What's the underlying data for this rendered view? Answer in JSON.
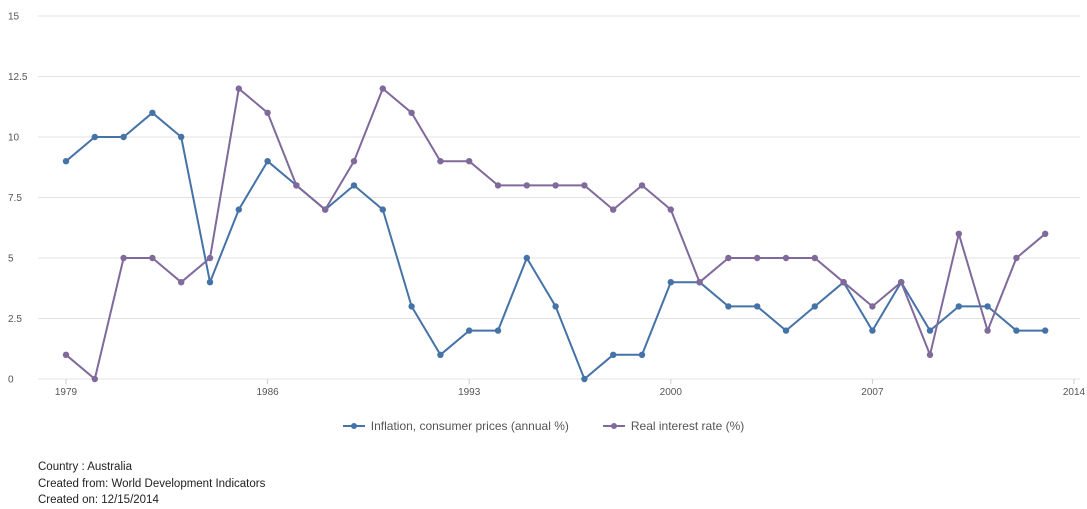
{
  "chart_data": {
    "type": "line",
    "title": "",
    "xlabel": "",
    "ylabel": "",
    "xlim": [
      1979,
      2014
    ],
    "ylim": [
      0,
      15
    ],
    "x_ticks": [
      1979,
      1986,
      1993,
      2000,
      2007,
      2014
    ],
    "y_ticks": [
      0,
      2.5,
      5,
      7.5,
      10,
      12.5,
      15
    ],
    "grid": true,
    "legend_position": "bottom",
    "x": [
      1979,
      1980,
      1981,
      1982,
      1983,
      1984,
      1985,
      1986,
      1987,
      1988,
      1989,
      1990,
      1991,
      1992,
      1993,
      1994,
      1995,
      1996,
      1997,
      1998,
      1999,
      2000,
      2001,
      2002,
      2003,
      2004,
      2005,
      2006,
      2007,
      2008,
      2009,
      2010,
      2011,
      2012,
      2013
    ],
    "series": [
      {
        "name": "Inflation, consumer prices (annual %)",
        "color": "#4572a7",
        "values": [
          9,
          10,
          10,
          11,
          10,
          4,
          7,
          9,
          8,
          7,
          8,
          7,
          3,
          1,
          2,
          2,
          5,
          3,
          0,
          1,
          1,
          4,
          4,
          3,
          3,
          2,
          3,
          4,
          2,
          4,
          2,
          3,
          3,
          2,
          2
        ]
      },
      {
        "name": "Real interest rate (%)",
        "color": "#80699b",
        "values": [
          1,
          0,
          5,
          5,
          4,
          5,
          12,
          11,
          8,
          7,
          9,
          12,
          11,
          9,
          9,
          8,
          8,
          8,
          8,
          7,
          8,
          7,
          4,
          5,
          5,
          5,
          5,
          4,
          3,
          4,
          1,
          6,
          2,
          5,
          6
        ]
      }
    ]
  },
  "footer": {
    "country": "Country : Australia",
    "source": "Created from: World Development Indicators",
    "created": "Created on: 12/15/2014"
  }
}
